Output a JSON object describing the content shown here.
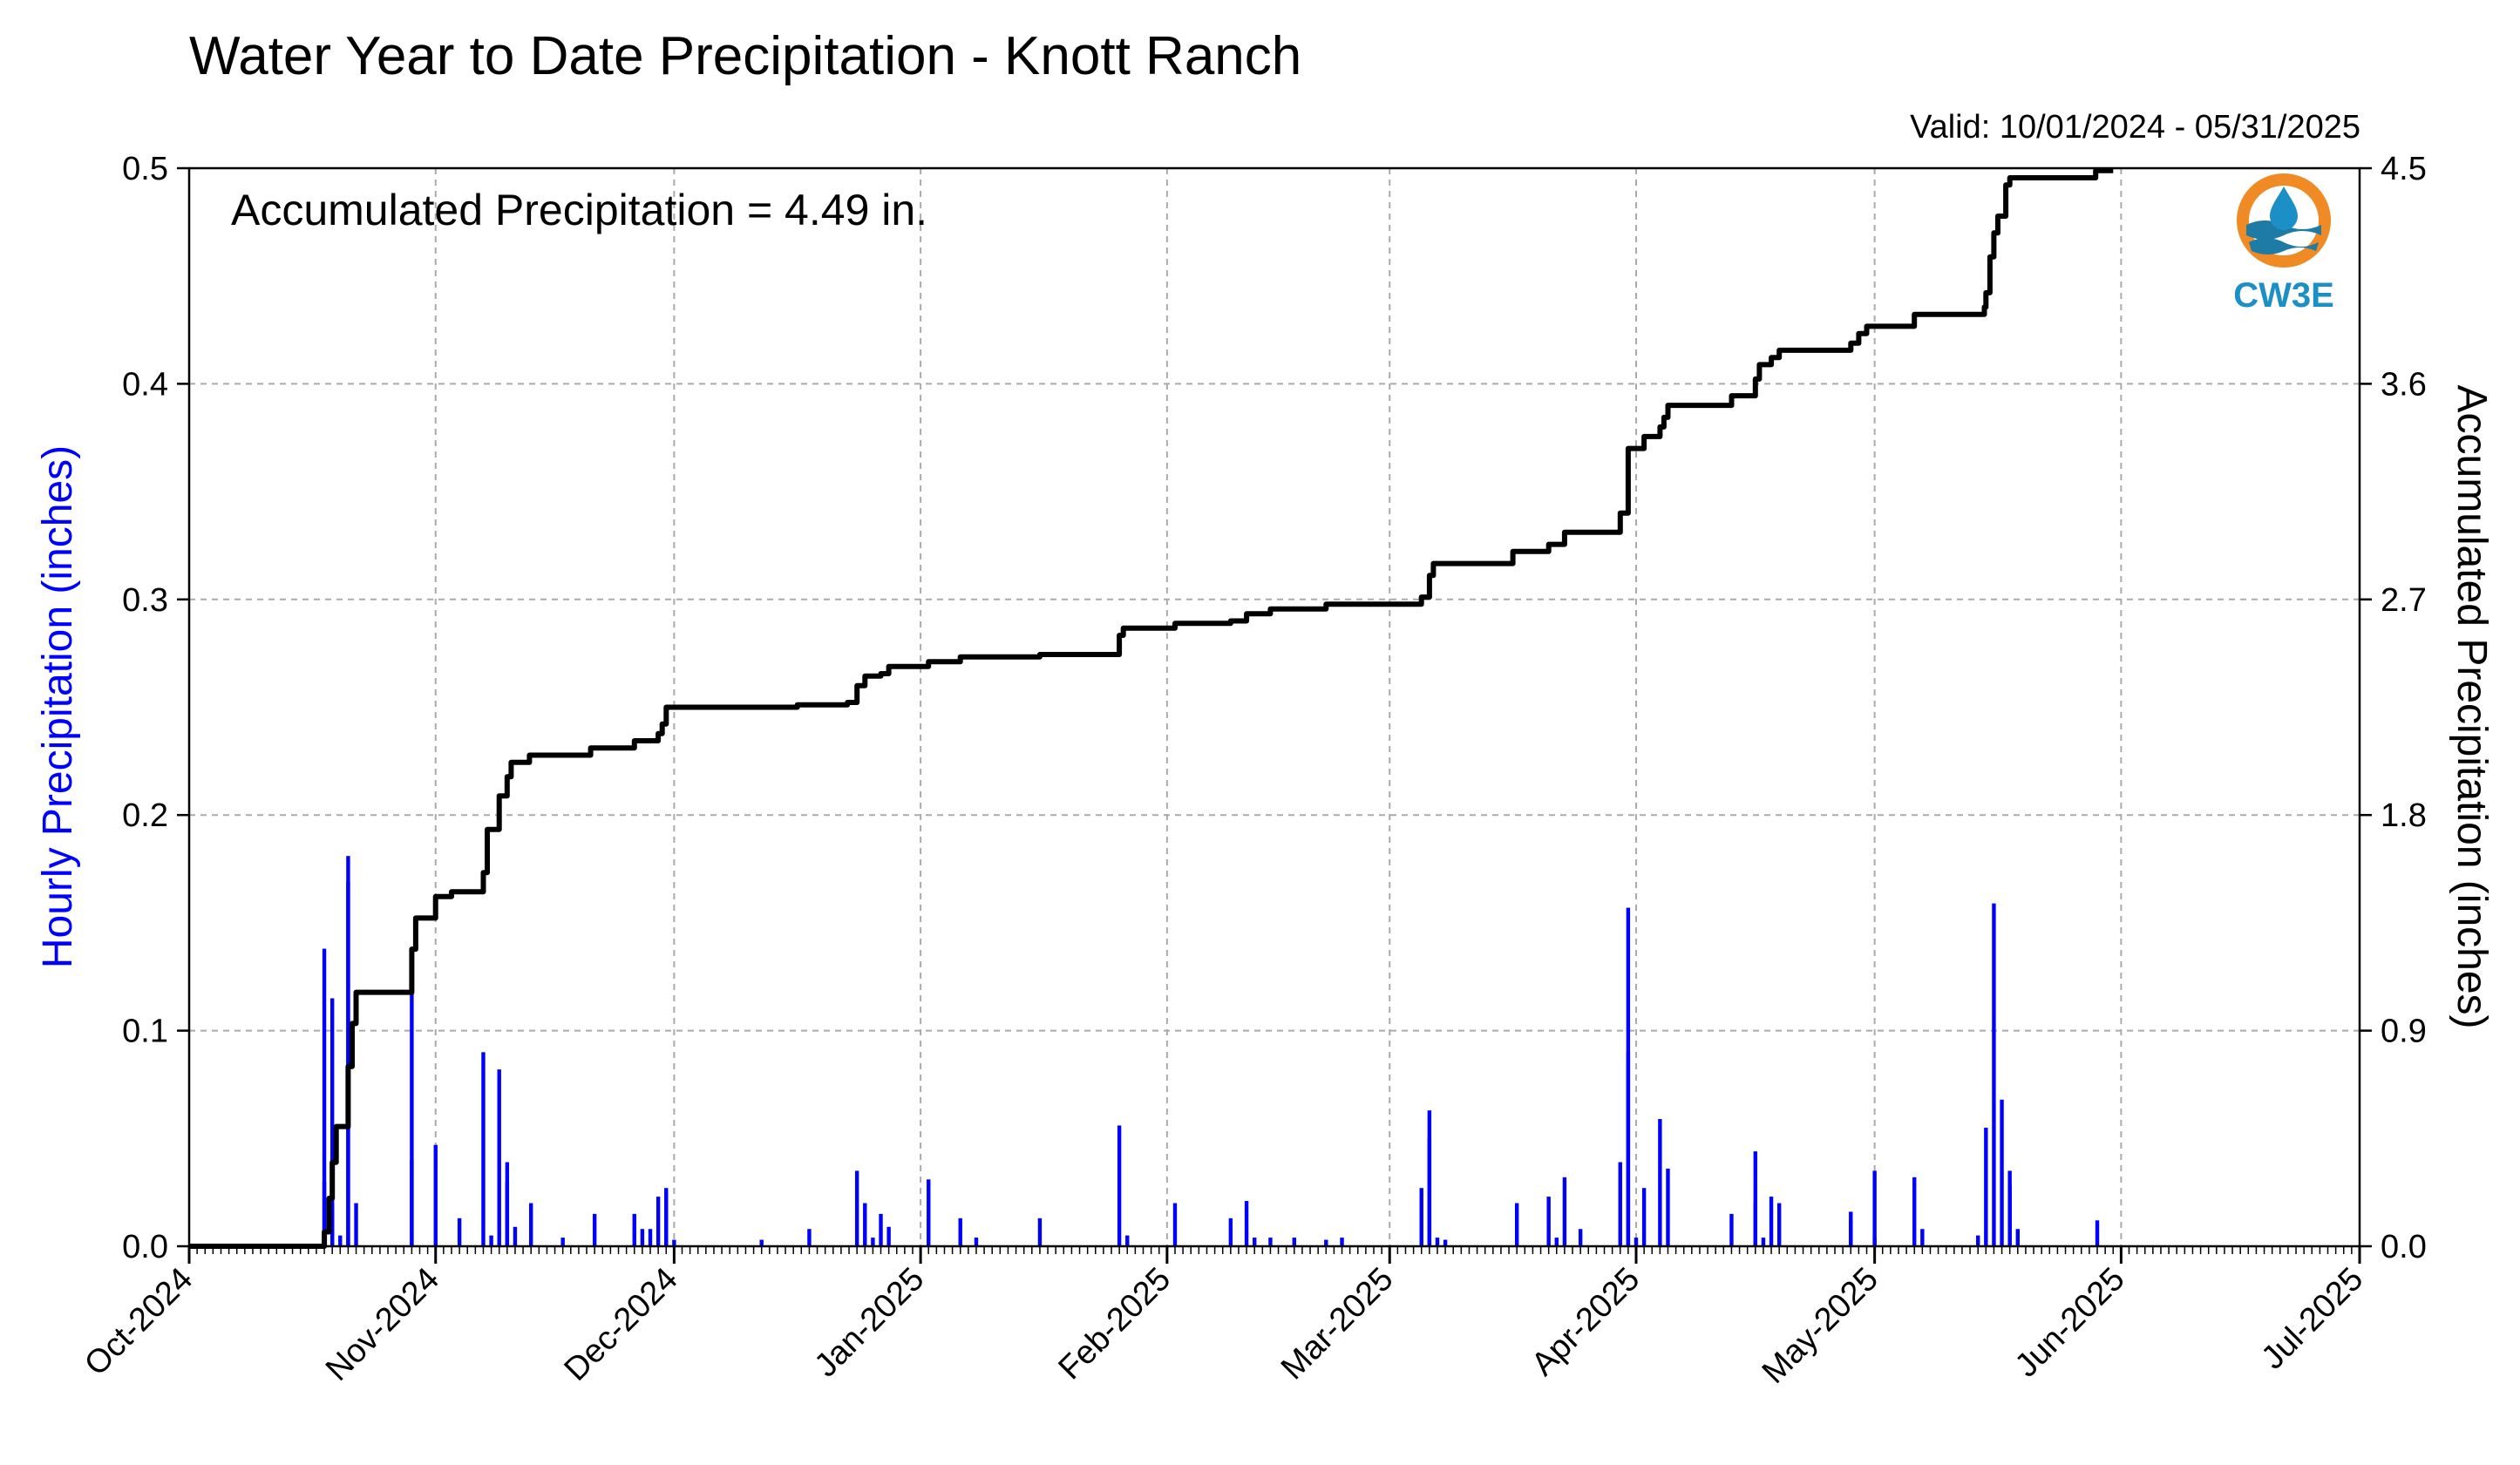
{
  "chart_data": {
    "type": "bar",
    "title": "Water Year to Date Precipitation - Knott Ranch",
    "subtitle": "Valid: 10/01/2024 - 05/31/2025",
    "annotation": "Accumulated Precipitation = 4.49 in.",
    "ylabel": "Hourly Precipitation (inches)",
    "y2label": "Accumulated Precipitation (inches)",
    "ylim": [
      0,
      0.5
    ],
    "y2lim": [
      0,
      4.5
    ],
    "xlim": [
      "2024-10-01",
      "2025-07-01"
    ],
    "x_tick_labels": [
      "Oct-2024",
      "Nov-2024",
      "Dec-2024",
      "Jan-2025",
      "Feb-2025",
      "Mar-2025",
      "Apr-2025",
      "May-2025",
      "Jun-2025",
      "Jul-2025"
    ],
    "x_tick_dates": [
      "2024-10-01",
      "2024-11-01",
      "2024-12-01",
      "2025-01-01",
      "2025-02-01",
      "2025-03-01",
      "2025-04-01",
      "2025-05-01",
      "2025-06-01",
      "2025-07-01"
    ],
    "y_tick_labels": [
      "0.0",
      "0.1",
      "0.2",
      "0.3",
      "0.4",
      "0.5"
    ],
    "y2_tick_labels": [
      "0.0",
      "0.9",
      "1.8",
      "2.7",
      "3.6",
      "4.5"
    ],
    "grid": true,
    "series": [
      {
        "type": "bar",
        "color": "#0000ff",
        "points": [
          {
            "x": "2024-10-18",
            "y": 0.03
          },
          {
            "x": "2024-10-18",
            "y": 0.138
          },
          {
            "x": "2024-10-19",
            "y": 0.115
          },
          {
            "x": "2024-10-19",
            "y": 0.02
          },
          {
            "x": "2024-10-20",
            "y": 0.005
          },
          {
            "x": "2024-10-21",
            "y": 0.169
          },
          {
            "x": "2024-10-21",
            "y": 0.181
          },
          {
            "x": "2024-10-22",
            "y": 0.02
          },
          {
            "x": "2024-10-29",
            "y": 0.12
          },
          {
            "x": "2024-10-29",
            "y": 0.04
          },
          {
            "x": "2024-11-01",
            "y": 0.047
          },
          {
            "x": "2024-11-04",
            "y": 0.013
          },
          {
            "x": "2024-11-07",
            "y": 0.09
          },
          {
            "x": "2024-11-08",
            "y": 0.005
          },
          {
            "x": "2024-11-09",
            "y": 0.082
          },
          {
            "x": "2024-11-10",
            "y": 0.039
          },
          {
            "x": "2024-11-10",
            "y": 0.03
          },
          {
            "x": "2024-11-11",
            "y": 0.009
          },
          {
            "x": "2024-11-13",
            "y": 0.02
          },
          {
            "x": "2024-11-17",
            "y": 0.004
          },
          {
            "x": "2024-11-21",
            "y": 0.015
          },
          {
            "x": "2024-11-26",
            "y": 0.015
          },
          {
            "x": "2024-11-27",
            "y": 0.008
          },
          {
            "x": "2024-11-28",
            "y": 0.008
          },
          {
            "x": "2024-11-29",
            "y": 0.023
          },
          {
            "x": "2024-11-30",
            "y": 0.027
          },
          {
            "x": "2024-11-30",
            "y": 0.025
          },
          {
            "x": "2024-12-01",
            "y": 0.003
          },
          {
            "x": "2024-12-12",
            "y": 0.003
          },
          {
            "x": "2024-12-18",
            "y": 0.008
          },
          {
            "x": "2024-12-24",
            "y": 0.035
          },
          {
            "x": "2024-12-25",
            "y": 0.02
          },
          {
            "x": "2024-12-26",
            "y": 0.004
          },
          {
            "x": "2024-12-27",
            "y": 0.015
          },
          {
            "x": "2024-12-28",
            "y": 0.009
          },
          {
            "x": "2025-01-02",
            "y": 0.031
          },
          {
            "x": "2025-01-06",
            "y": 0.013
          },
          {
            "x": "2025-01-08",
            "y": 0.004
          },
          {
            "x": "2025-01-16",
            "y": 0.013
          },
          {
            "x": "2025-01-26",
            "y": 0.056
          },
          {
            "x": "2025-01-27",
            "y": 0.005
          },
          {
            "x": "2025-02-02",
            "y": 0.02
          },
          {
            "x": "2025-02-09",
            "y": 0.013
          },
          {
            "x": "2025-02-11",
            "y": 0.021
          },
          {
            "x": "2025-02-12",
            "y": 0.004
          },
          {
            "x": "2025-02-14",
            "y": 0.004
          },
          {
            "x": "2025-02-17",
            "y": 0.004
          },
          {
            "x": "2025-02-21",
            "y": 0.003
          },
          {
            "x": "2025-02-23",
            "y": 0.004
          },
          {
            "x": "2025-03-05",
            "y": 0.027
          },
          {
            "x": "2025-03-06",
            "y": 0.063
          },
          {
            "x": "2025-03-06",
            "y": 0.05
          },
          {
            "x": "2025-03-07",
            "y": 0.004
          },
          {
            "x": "2025-03-08",
            "y": 0.003
          },
          {
            "x": "2025-03-17",
            "y": 0.02
          },
          {
            "x": "2025-03-21",
            "y": 0.023
          },
          {
            "x": "2025-03-22",
            "y": 0.004
          },
          {
            "x": "2025-03-23",
            "y": 0.032
          },
          {
            "x": "2025-03-25",
            "y": 0.008
          },
          {
            "x": "2025-03-30",
            "y": 0.039
          },
          {
            "x": "2025-03-31",
            "y": 0.157
          },
          {
            "x": "2025-03-31",
            "y": 0.09
          },
          {
            "x": "2025-04-01",
            "y": 0.004
          },
          {
            "x": "2025-04-02",
            "y": 0.027
          },
          {
            "x": "2025-04-04",
            "y": 0.059
          },
          {
            "x": "2025-04-05",
            "y": 0.036
          },
          {
            "x": "2025-04-13",
            "y": 0.015
          },
          {
            "x": "2025-04-16",
            "y": 0.044
          },
          {
            "x": "2025-04-16",
            "y": 0.02
          },
          {
            "x": "2025-04-17",
            "y": 0.004
          },
          {
            "x": "2025-04-18",
            "y": 0.023
          },
          {
            "x": "2025-04-19",
            "y": 0.02
          },
          {
            "x": "2025-04-28",
            "y": 0.016
          },
          {
            "x": "2025-04-28",
            "y": 0.012
          },
          {
            "x": "2025-05-01",
            "y": 0.035
          },
          {
            "x": "2025-05-01",
            "y": 0.004
          },
          {
            "x": "2025-05-06",
            "y": 0.032
          },
          {
            "x": "2025-05-07",
            "y": 0.008
          },
          {
            "x": "2025-05-14",
            "y": 0.005
          },
          {
            "x": "2025-05-15",
            "y": 0.055
          },
          {
            "x": "2025-05-16",
            "y": 0.159
          },
          {
            "x": "2025-05-17",
            "y": 0.068
          },
          {
            "x": "2025-05-18",
            "y": 0.035
          },
          {
            "x": "2025-05-18",
            "y": 0.028
          },
          {
            "x": "2025-05-19",
            "y": 0.008
          },
          {
            "x": "2025-05-29",
            "y": 0.012
          }
        ]
      },
      {
        "type": "step",
        "color": "#000000",
        "axis": "right",
        "points": [
          {
            "x": "2024-10-01",
            "y": 0.0
          },
          {
            "x": "2024-10-18",
            "y": 0.0
          },
          {
            "x": "2024-10-18",
            "y": 0.06
          },
          {
            "x": "2024-10-18.6",
            "y": 0.2
          },
          {
            "x": "2024-10-19",
            "y": 0.35
          },
          {
            "x": "2024-10-19.5",
            "y": 0.5
          },
          {
            "x": "2024-10-21",
            "y": 0.52
          },
          {
            "x": "2024-10-21",
            "y": 0.75
          },
          {
            "x": "2024-10-21.5",
            "y": 0.93
          },
          {
            "x": "2024-10-22",
            "y": 1.06
          },
          {
            "x": "2024-10-29",
            "y": 1.06
          },
          {
            "x": "2024-10-29",
            "y": 1.24
          },
          {
            "x": "2024-10-29.5",
            "y": 1.37
          },
          {
            "x": "2024-11-01",
            "y": 1.37
          },
          {
            "x": "2024-11-01",
            "y": 1.46
          },
          {
            "x": "2024-11-03",
            "y": 1.48
          },
          {
            "x": "2024-11-07",
            "y": 1.48
          },
          {
            "x": "2024-11-07",
            "y": 1.56
          },
          {
            "x": "2024-11-07.5",
            "y": 1.74
          },
          {
            "x": "2024-11-09",
            "y": 1.74
          },
          {
            "x": "2024-11-09",
            "y": 1.88
          },
          {
            "x": "2024-11-10",
            "y": 1.88
          },
          {
            "x": "2024-11-10",
            "y": 1.96
          },
          {
            "x": "2024-11-10.5",
            "y": 2.02
          },
          {
            "x": "2024-11-12.8",
            "y": 2.05
          },
          {
            "x": "2024-11-20.5",
            "y": 2.05
          },
          {
            "x": "2024-11-20.5",
            "y": 2.08
          },
          {
            "x": "2024-11-26",
            "y": 2.08
          },
          {
            "x": "2024-11-26",
            "y": 2.11
          },
          {
            "x": "2024-11-29",
            "y": 2.14
          },
          {
            "x": "2024-11-29.5",
            "y": 2.18
          },
          {
            "x": "2024-11-30",
            "y": 2.22
          },
          {
            "x": "2024-11-30",
            "y": 2.25
          },
          {
            "x": "2024-12-16.5",
            "y": 2.25
          },
          {
            "x": "2024-12-16.5",
            "y": 2.26
          },
          {
            "x": "2024-12-22.8",
            "y": 2.27
          },
          {
            "x": "2024-12-24",
            "y": 2.27
          },
          {
            "x": "2024-12-24",
            "y": 2.34
          },
          {
            "x": "2024-12-25",
            "y": 2.38
          },
          {
            "x": "2024-12-27",
            "y": 2.39
          },
          {
            "x": "2024-12-28",
            "y": 2.42
          },
          {
            "x": "2025-01-02",
            "y": 2.42
          },
          {
            "x": "2025-01-02",
            "y": 2.44
          },
          {
            "x": "2025-01-06",
            "y": 2.46
          },
          {
            "x": "2025-01-16",
            "y": 2.47
          },
          {
            "x": "2025-01-26",
            "y": 2.48
          },
          {
            "x": "2025-01-26",
            "y": 2.55
          },
          {
            "x": "2025-01-26.5",
            "y": 2.58
          },
          {
            "x": "2025-02-02",
            "y": 2.58
          },
          {
            "x": "2025-02-02",
            "y": 2.6
          },
          {
            "x": "2025-02-09",
            "y": 2.61
          },
          {
            "x": "2025-02-11",
            "y": 2.64
          },
          {
            "x": "2025-02-14",
            "y": 2.66
          },
          {
            "x": "2025-02-20",
            "y": 2.66
          },
          {
            "x": "2025-02-21",
            "y": 2.68
          },
          {
            "x": "2025-03-05",
            "y": 2.68
          },
          {
            "x": "2025-03-05",
            "y": 2.71
          },
          {
            "x": "2025-03-06",
            "y": 2.8
          },
          {
            "x": "2025-03-06.5",
            "y": 2.85
          },
          {
            "x": "2025-03-16.5",
            "y": 2.86
          },
          {
            "x": "2025-03-16.5",
            "y": 2.9
          },
          {
            "x": "2025-03-21",
            "y": 2.9
          },
          {
            "x": "2025-03-21",
            "y": 2.93
          },
          {
            "x": "2025-03-23",
            "y": 2.95
          },
          {
            "x": "2025-03-23",
            "y": 2.98
          },
          {
            "x": "2025-03-30",
            "y": 2.98
          },
          {
            "x": "2025-03-30",
            "y": 3.06
          },
          {
            "x": "2025-03-31",
            "y": 3.15
          },
          {
            "x": "2025-03-31",
            "y": 3.33
          },
          {
            "x": "2025-04-02",
            "y": 3.35
          },
          {
            "x": "2025-04-02",
            "y": 3.38
          },
          {
            "x": "2025-04-04",
            "y": 3.42
          },
          {
            "x": "2025-04-04.5",
            "y": 3.46
          },
          {
            "x": "2025-04-05",
            "y": 3.51
          },
          {
            "x": "2025-04-12.8",
            "y": 3.51
          },
          {
            "x": "2025-04-13",
            "y": 3.55
          },
          {
            "x": "2025-04-16",
            "y": 3.55
          },
          {
            "x": "2025-04-16",
            "y": 3.62
          },
          {
            "x": "2025-04-16.5",
            "y": 3.68
          },
          {
            "x": "2025-04-18",
            "y": 3.71
          },
          {
            "x": "2025-04-19",
            "y": 3.74
          },
          {
            "x": "2025-04-28",
            "y": 3.74
          },
          {
            "x": "2025-04-28",
            "y": 3.77
          },
          {
            "x": "2025-04-29",
            "y": 3.81
          },
          {
            "x": "2025-04-30",
            "y": 3.84
          },
          {
            "x": "2025-05-06",
            "y": 3.84
          },
          {
            "x": "2025-05-06",
            "y": 3.89
          },
          {
            "x": "2025-05-14.8",
            "y": 3.89
          },
          {
            "x": "2025-05-14.8",
            "y": 3.92
          },
          {
            "x": "2025-05-15",
            "y": 3.98
          },
          {
            "x": "2025-05-15.5",
            "y": 4.13
          },
          {
            "x": "2025-05-16",
            "y": 4.23
          },
          {
            "x": "2025-05-16.5",
            "y": 4.3
          },
          {
            "x": "2025-05-17",
            "y": 4.3
          },
          {
            "x": "2025-05-17.5",
            "y": 4.43
          },
          {
            "x": "2025-05-18",
            "y": 4.46
          },
          {
            "x": "2025-05-28.8",
            "y": 4.46
          },
          {
            "x": "2025-05-28.8",
            "y": 4.49
          },
          {
            "x": "2025-05-31",
            "y": 4.49
          }
        ]
      }
    ]
  },
  "logo": {
    "text": "CW3E",
    "ring_color": "#f08a24",
    "drop_color": "#1d8fc7",
    "wave_color": "#1d7ba6"
  }
}
